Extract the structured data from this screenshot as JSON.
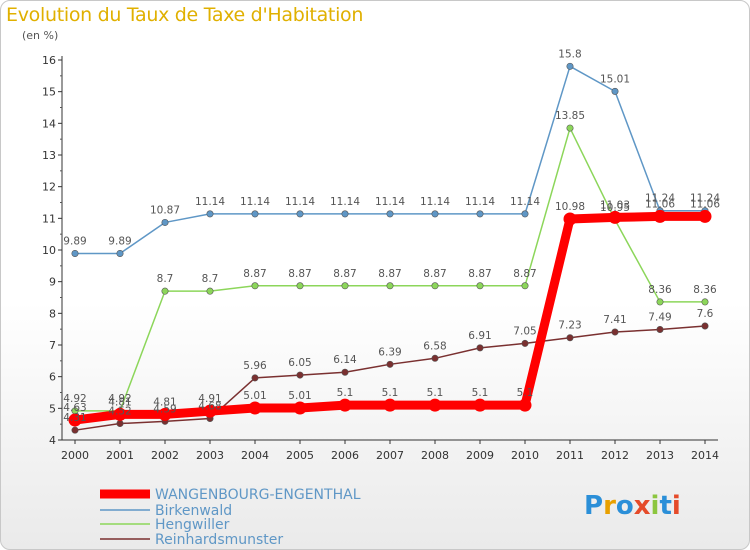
{
  "header": {
    "title": "Evolution du Taux de Taxe d'Habitation",
    "subtitle": "(en %)"
  },
  "logo": {
    "text": "Proxiti"
  },
  "chart_data": {
    "type": "line",
    "title": "Evolution du Taux de Taxe d'Habitation",
    "subtitle": "(en %)",
    "x": [
      2000,
      2001,
      2002,
      2003,
      2004,
      2005,
      2006,
      2007,
      2008,
      2009,
      2010,
      2011,
      2012,
      2013,
      2014
    ],
    "ylim": [
      4,
      16
    ],
    "yticks": [
      4,
      5,
      6,
      7,
      8,
      9,
      10,
      11,
      12,
      13,
      14,
      15,
      16
    ],
    "grid": false,
    "legend_position": "bottom-left",
    "series": [
      {
        "name": "WANGENBOURG-ENGENTHAL",
        "color": "#ff0000",
        "values": [
          4.63,
          4.81,
          4.81,
          4.91,
          5.01,
          5.01,
          5.1,
          5.1,
          5.1,
          5.1,
          5.1,
          10.98,
          11.03,
          11.06,
          11.06
        ],
        "labels": [
          "4.63",
          "4.81",
          "4.81",
          "4.91",
          "5.01",
          "5.01",
          "5.1",
          "5.1",
          "5.1",
          "5.1",
          "5.1",
          "10.98",
          "11.03",
          "11.06",
          "11.06"
        ]
      },
      {
        "name": "Birkenwald",
        "color": "#5f97c6",
        "values": [
          9.89,
          9.89,
          10.87,
          11.14,
          11.14,
          11.14,
          11.14,
          11.14,
          11.14,
          11.14,
          11.14,
          15.8,
          15.01,
          11.24,
          11.24
        ],
        "labels": [
          "9.89",
          "9.89",
          "10.87",
          "11.14",
          "11.14",
          "11.14",
          "11.14",
          "11.14",
          "11.14",
          "11.14",
          "11.14",
          "15.8",
          "15.01",
          "11.24",
          "11.24"
        ]
      },
      {
        "name": "Hengwiller",
        "color": "#8cd65a",
        "values": [
          4.92,
          4.92,
          8.7,
          8.7,
          8.87,
          8.87,
          8.87,
          8.87,
          8.87,
          8.87,
          8.87,
          13.85,
          10.95,
          8.36,
          8.36
        ],
        "labels": [
          "4.92",
          "4.92",
          "8.7",
          "8.7",
          "8.87",
          "8.87",
          "8.87",
          "8.87",
          "8.87",
          "8.87",
          "8.87",
          "13.85",
          "10.95",
          "8.36",
          "8.36"
        ]
      },
      {
        "name": "Reinhardsmunster",
        "color": "#7a3030",
        "values": [
          4.31,
          4.52,
          4.59,
          4.68,
          5.96,
          6.05,
          6.14,
          6.39,
          6.58,
          6.91,
          7.05,
          7.23,
          7.41,
          7.49,
          7.6
        ],
        "labels": [
          "4.31",
          "4.52",
          "4.59",
          "4.68",
          "5.96",
          "6.05",
          "6.14",
          "6.39",
          "6.58",
          "6.91",
          "7.05",
          "7.23",
          "7.41",
          "7.49",
          "7.6"
        ]
      }
    ]
  }
}
